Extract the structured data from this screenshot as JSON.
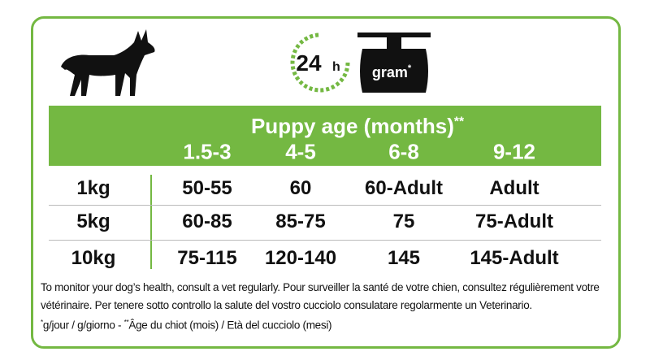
{
  "icons": {
    "time_number": "24",
    "time_unit": "h",
    "scale_label": "gram",
    "scale_mark": "*"
  },
  "table": {
    "header": {
      "title": "Puppy age (months)",
      "title_mark": "**",
      "columns": [
        "1.5-3",
        "4-5",
        "6-8",
        "9-12"
      ]
    },
    "rows": [
      [
        "1kg",
        "50-55",
        "60",
        "60-Adult",
        "Adult"
      ],
      [
        "5kg",
        "60-85",
        "85-75",
        "75",
        "75-Adult"
      ],
      [
        "10kg",
        "75-115",
        "120-140",
        "145",
        "145-Adult"
      ]
    ]
  },
  "footnotes": {
    "line1": "To monitor your dog’s health, consult a vet regularly. Pour surveiller la santé de votre chien, consultez régulièrement votre",
    "line2": "vétérinaire. Per tenere sotto controllo la salute del vostro cucciolo consulatare regolarmente un Veterinario.",
    "mark1": "*",
    "part1": "g/jour / g/giorno - ",
    "mark2": "**",
    "part2": "Âge du chiot (mois) / Età del cucciolo (mesi)"
  }
}
